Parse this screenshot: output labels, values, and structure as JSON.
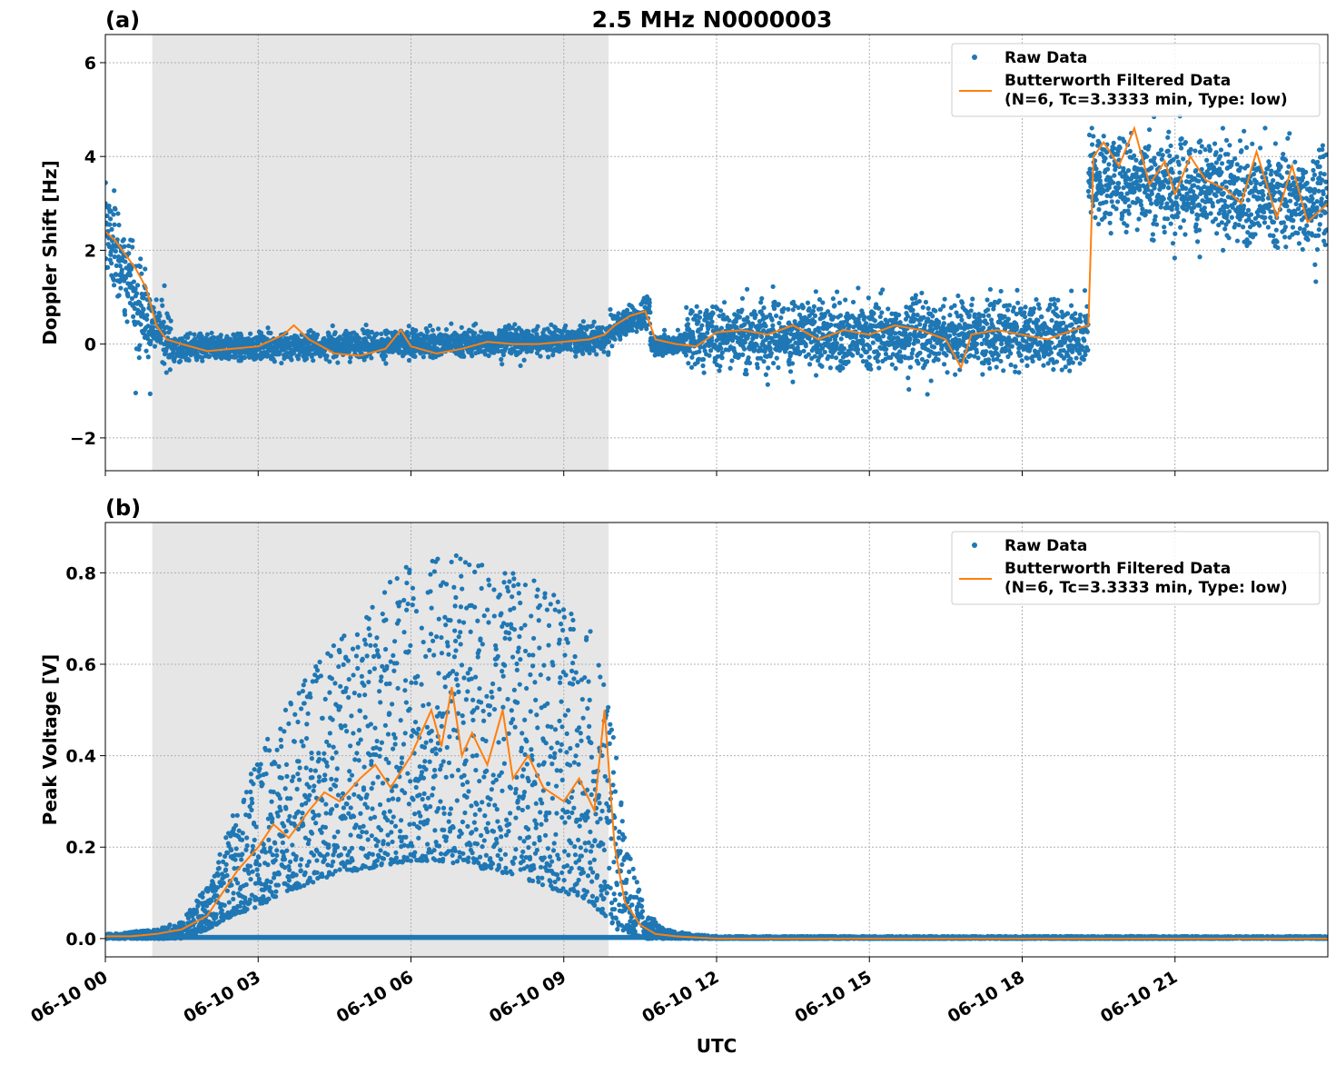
{
  "figure": {
    "title": "2.5 MHz N0000003",
    "xlabel": "UTC"
  },
  "chart_data": [
    {
      "type": "scatter",
      "panel_label": "(a)",
      "ylabel": "Doppler Shift [Hz]",
      "ylim": [
        -2.7,
        6.6
      ],
      "yticks": [
        -2,
        0,
        2,
        4,
        6
      ],
      "ytick_labels": [
        "−2",
        "0",
        "2",
        "4",
        "6"
      ],
      "xlim_hours": [
        0,
        24
      ],
      "xticks_hours": [
        0,
        3,
        6,
        9,
        12,
        15,
        18,
        21
      ],
      "grid": true,
      "legend_position": "top-right",
      "shaded_span_hours": [
        0.92,
        9.88
      ],
      "series": [
        {
          "name": "Raw Data",
          "kind": "scatter",
          "color": "#1f77b4",
          "spread_segments": [
            {
              "start": 0.0,
              "end": 0.9,
              "center_start": 2.5,
              "center_end": 0.3,
              "halfwidth": 1.5
            },
            {
              "start": 0.9,
              "end": 1.3,
              "center_start": 0.5,
              "center_end": 0.0,
              "halfwidth": 0.9
            },
            {
              "start": 1.3,
              "end": 9.9,
              "center_start": -0.1,
              "center_end": 0.1,
              "halfwidth": 0.45
            },
            {
              "start": 9.9,
              "end": 10.7,
              "center_start": 0.3,
              "center_end": 0.7,
              "halfwidth": 0.5
            },
            {
              "start": 10.7,
              "end": 11.4,
              "center_start": 0.0,
              "center_end": 0.0,
              "halfwidth": 0.35
            },
            {
              "start": 11.4,
              "end": 19.3,
              "center_start": 0.2,
              "center_end": 0.2,
              "halfwidth": 1.1
            },
            {
              "start": 19.3,
              "end": 24.0,
              "center_start": 3.6,
              "center_end": 3.0,
              "halfwidth": 1.6
            }
          ]
        },
        {
          "name": "Butterworth Filtered Data\n(N=6, Tc=3.3333 min, Type: low)",
          "kind": "line",
          "color": "#ff7f0e",
          "x_hours": [
            0.0,
            0.2,
            0.4,
            0.6,
            0.8,
            1.0,
            1.2,
            1.5,
            2.0,
            2.5,
            3.0,
            3.5,
            3.7,
            4.0,
            4.5,
            5.0,
            5.5,
            5.8,
            6.0,
            6.5,
            7.0,
            7.5,
            8.0,
            8.5,
            9.0,
            9.5,
            9.8,
            10.0,
            10.3,
            10.6,
            10.8,
            11.2,
            11.6,
            12.0,
            12.5,
            13.0,
            13.5,
            14.0,
            14.5,
            15.0,
            15.5,
            16.0,
            16.5,
            16.8,
            17.0,
            17.5,
            18.0,
            18.5,
            19.0,
            19.3,
            19.4,
            19.6,
            19.9,
            20.2,
            20.5,
            20.8,
            21.0,
            21.3,
            21.6,
            22.0,
            22.3,
            22.6,
            23.0,
            23.3,
            23.6,
            24.0
          ],
          "y": [
            2.4,
            2.2,
            1.9,
            1.6,
            1.2,
            0.4,
            0.1,
            0.0,
            -0.15,
            -0.1,
            -0.05,
            0.2,
            0.4,
            0.1,
            -0.2,
            -0.25,
            -0.1,
            0.3,
            -0.05,
            -0.2,
            -0.1,
            0.05,
            0.0,
            0.0,
            0.05,
            0.1,
            0.2,
            0.4,
            0.6,
            0.7,
            0.1,
            0.0,
            -0.05,
            0.25,
            0.3,
            0.2,
            0.4,
            0.1,
            0.3,
            0.2,
            0.4,
            0.3,
            0.1,
            -0.5,
            0.2,
            0.3,
            0.2,
            0.1,
            0.3,
            0.4,
            4.0,
            4.3,
            3.8,
            4.6,
            3.4,
            3.9,
            3.2,
            4.0,
            3.5,
            3.3,
            3.0,
            4.1,
            2.7,
            3.8,
            2.6,
            3.0
          ]
        }
      ]
    },
    {
      "type": "scatter",
      "panel_label": "(b)",
      "ylabel": "Peak Voltage [V]",
      "ylim": [
        -0.04,
        0.91
      ],
      "yticks": [
        0.0,
        0.2,
        0.4,
        0.6,
        0.8
      ],
      "ytick_labels": [
        "0.0",
        "0.2",
        "0.4",
        "0.6",
        "0.8"
      ],
      "xlim_hours": [
        0,
        24
      ],
      "xticks_hours": [
        0,
        3,
        6,
        9,
        12,
        15,
        18,
        21
      ],
      "xtick_labels": [
        "06-10 00",
        "06-10 03",
        "06-10 06",
        "06-10 09",
        "06-10 12",
        "06-10 15",
        "06-10 18",
        "06-10 21"
      ],
      "grid": true,
      "legend_position": "top-right",
      "shaded_span_hours": [
        0.92,
        9.88
      ],
      "series": [
        {
          "name": "Raw Data",
          "kind": "scatter",
          "color": "#1f77b4",
          "envelope_hours": [
            0.0,
            1.0,
            1.5,
            2.0,
            2.5,
            3.0,
            3.5,
            4.0,
            4.5,
            5.0,
            5.5,
            6.0,
            6.5,
            7.0,
            7.5,
            8.0,
            8.5,
            9.0,
            9.5,
            9.8,
            10.0,
            10.3,
            10.6,
            11.0,
            11.5,
            12.0,
            24.0
          ],
          "envelope_low": [
            0.0,
            0.0,
            0.0,
            0.02,
            0.05,
            0.07,
            0.1,
            0.12,
            0.14,
            0.15,
            0.16,
            0.17,
            0.17,
            0.16,
            0.15,
            0.14,
            0.12,
            0.1,
            0.08,
            0.05,
            0.02,
            0.01,
            0.0,
            0.0,
            0.0,
            0.0,
            0.0
          ],
          "envelope_high": [
            0.01,
            0.02,
            0.04,
            0.12,
            0.27,
            0.4,
            0.5,
            0.58,
            0.65,
            0.72,
            0.78,
            0.82,
            0.84,
            0.84,
            0.82,
            0.8,
            0.78,
            0.75,
            0.72,
            0.6,
            0.42,
            0.18,
            0.06,
            0.02,
            0.01,
            0.005,
            0.005
          ]
        },
        {
          "name": "Butterworth Filtered Data\n(N=6, Tc=3.3333 min, Type: low)",
          "kind": "line",
          "color": "#ff7f0e",
          "x_hours": [
            0.0,
            0.5,
            1.0,
            1.5,
            2.0,
            2.3,
            2.6,
            3.0,
            3.3,
            3.6,
            4.0,
            4.3,
            4.6,
            5.0,
            5.3,
            5.6,
            6.0,
            6.2,
            6.4,
            6.6,
            6.8,
            7.0,
            7.2,
            7.5,
            7.8,
            8.0,
            8.3,
            8.6,
            9.0,
            9.3,
            9.6,
            9.8,
            10.0,
            10.2,
            10.5,
            10.8,
            11.2,
            12.0,
            24.0
          ],
          "y": [
            0.005,
            0.005,
            0.01,
            0.02,
            0.05,
            0.1,
            0.15,
            0.2,
            0.25,
            0.22,
            0.28,
            0.32,
            0.3,
            0.35,
            0.38,
            0.33,
            0.4,
            0.45,
            0.5,
            0.42,
            0.55,
            0.4,
            0.45,
            0.38,
            0.5,
            0.35,
            0.4,
            0.33,
            0.3,
            0.35,
            0.28,
            0.5,
            0.2,
            0.08,
            0.03,
            0.01,
            0.005,
            0.0,
            0.0
          ]
        }
      ]
    }
  ]
}
